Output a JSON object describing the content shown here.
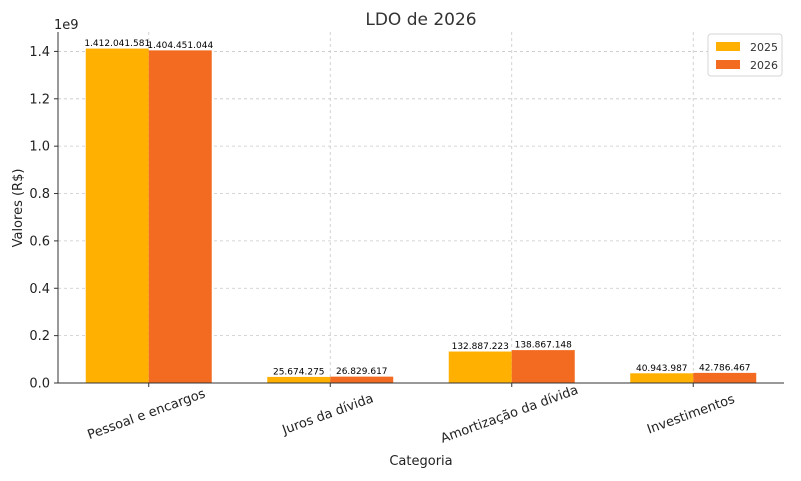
{
  "chart_data": {
    "type": "bar",
    "title": "LDO de 2026",
    "xlabel": "Categoria",
    "ylabel": "Valores (R$)",
    "y_offset_label": "1e9",
    "categories": [
      "Pessoal e encargos",
      "Juros da dívida",
      "Amortização da dívida",
      "Investimentos"
    ],
    "series": [
      {
        "name": "2025",
        "color": "#FFB000",
        "values": [
          1412041581,
          25674275,
          132887223,
          40943987
        ],
        "labels": [
          "1.412.041.581",
          "25.674.275",
          "132.887.223",
          "40.943.987"
        ]
      },
      {
        "name": "2026",
        "color": "#F26B21",
        "values": [
          1404451044,
          26829617,
          138867148,
          42786467
        ],
        "labels": [
          "1.404.451.044",
          "26.829.617",
          "138.867.148",
          "42.786.467"
        ]
      }
    ],
    "ylim": [
      0,
      1482000000
    ],
    "yticks": [
      0,
      0.2,
      0.4,
      0.6,
      0.8,
      1.0,
      1.2,
      1.4
    ],
    "ytick_labels": [
      "0.0",
      "0.2",
      "0.4",
      "0.6",
      "0.8",
      "1.0",
      "1.2",
      "1.4"
    ],
    "grid": true,
    "legend_position": "top-right"
  }
}
